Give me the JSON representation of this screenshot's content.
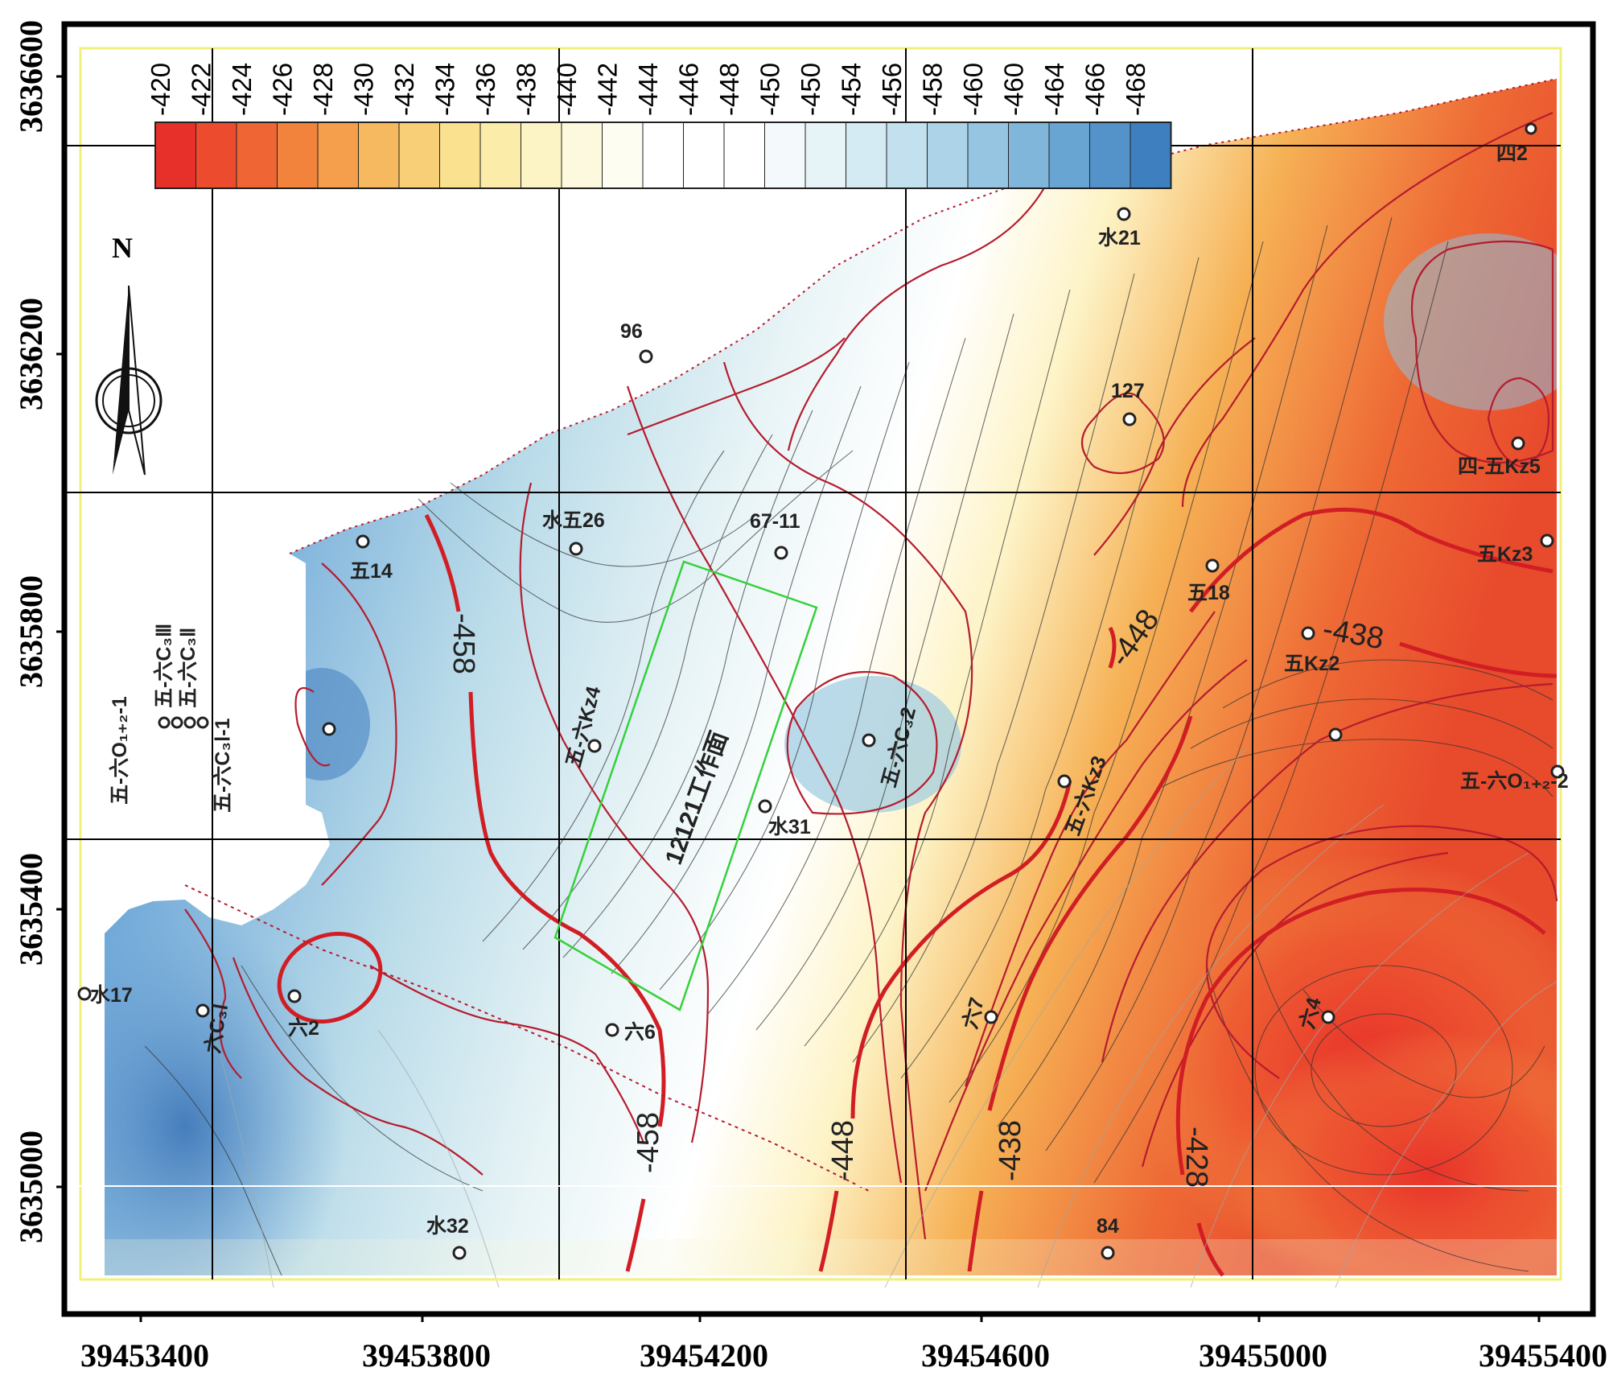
{
  "legend": {
    "labels": [
      "-420",
      "-422",
      "-424",
      "-426",
      "-428",
      "-430",
      "-432",
      "-434",
      "-436",
      "-438",
      "-440",
      "-442",
      "-444",
      "-446",
      "-448",
      "-450",
      "-450",
      "-454",
      "-456",
      "-458",
      "-460",
      "-460",
      "-464",
      "-466",
      "-468"
    ],
    "colors": [
      "#e8302a",
      "#ec4b2e",
      "#ef6634",
      "#f2833d",
      "#f59f4d",
      "#f7b95f",
      "#f8cf76",
      "#f9e18f",
      "#fbeca9",
      "#fcf4c4",
      "#fdf9de",
      "#fefdf1",
      "#ffffff",
      "#ffffff",
      "#ffffff",
      "#f4fafb",
      "#e6f3f7",
      "#d5ebf3",
      "#c2e0ee",
      "#acd3e8",
      "#95c5e1",
      "#7fb6da",
      "#68a5d2",
      "#5393c9",
      "#3e7fc0"
    ]
  },
  "axes": {
    "x_ticks": [
      "39453400",
      "39453800",
      "39454200",
      "39454600",
      "39455000",
      "39455400"
    ],
    "y_ticks": [
      "3636600",
      "3636200",
      "3635800",
      "3635400",
      "3635000"
    ]
  },
  "north": {
    "label": "N"
  },
  "work_face": {
    "label": "12121工作面"
  },
  "contours": [
    {
      "label": "-458"
    },
    {
      "label": "-458"
    },
    {
      "label": "-448"
    },
    {
      "label": "-448"
    },
    {
      "label": "-438"
    },
    {
      "label": "-438"
    },
    {
      "label": "-428"
    }
  ],
  "wells": [
    {
      "name": "四2"
    },
    {
      "name": "水21"
    },
    {
      "name": "96"
    },
    {
      "name": "127"
    },
    {
      "name": "四-五Kz5"
    },
    {
      "name": "水五26"
    },
    {
      "name": "67-11"
    },
    {
      "name": "五14"
    },
    {
      "name": "五18"
    },
    {
      "name": "五Kz3"
    },
    {
      "name": "五Kz2"
    },
    {
      "name": "五-六C₃Ⅲ"
    },
    {
      "name": "五-六C₃Ⅱ"
    },
    {
      "name": "五-六O₁₊₂-1"
    },
    {
      "name": "五-六C₃Ⅰ-1"
    },
    {
      "name": "五-六Kz4"
    },
    {
      "name": "五-六C₃2"
    },
    {
      "name": "水31"
    },
    {
      "name": "五-六Kz3"
    },
    {
      "name": "五-六O₁₊₂-2"
    },
    {
      "name": "水17"
    },
    {
      "name": "六C₃Ⅰ"
    },
    {
      "name": "六2"
    },
    {
      "name": "六6"
    },
    {
      "name": "六7"
    },
    {
      "name": "六4"
    },
    {
      "name": "水32"
    },
    {
      "name": "84"
    }
  ]
}
